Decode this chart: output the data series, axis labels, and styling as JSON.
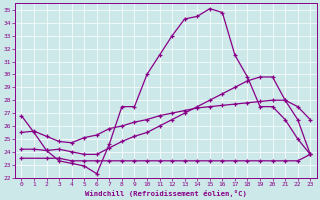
{
  "xlabel": "Windchill (Refroidissement éolien,°C)",
  "bg_color": "#cde8e8",
  "line_color": "#880088",
  "xlim": [
    -0.5,
    23.5
  ],
  "ylim": [
    22.0,
    35.5
  ],
  "yticks": [
    22,
    23,
    24,
    25,
    26,
    27,
    28,
    29,
    30,
    31,
    32,
    33,
    34,
    35
  ],
  "xticks": [
    0,
    1,
    2,
    3,
    4,
    5,
    6,
    7,
    8,
    9,
    10,
    11,
    12,
    13,
    14,
    15,
    16,
    17,
    18,
    19,
    20,
    21,
    22,
    23
  ],
  "s1_x": [
    0,
    1,
    2,
    3,
    4,
    5,
    6,
    7,
    8,
    9,
    10,
    11,
    12,
    13,
    14,
    15,
    16,
    17,
    18,
    19,
    20,
    21,
    22,
    23
  ],
  "s1_y": [
    26.8,
    25.5,
    24.1,
    23.3,
    23.1,
    22.9,
    22.3,
    24.6,
    27.5,
    27.5,
    30.0,
    31.5,
    33.0,
    34.3,
    34.5,
    35.1,
    34.8,
    31.5,
    29.8,
    27.5,
    27.5,
    26.5,
    25.0,
    23.8
  ],
  "s2_x": [
    0,
    2,
    3,
    4,
    5,
    6,
    7,
    8,
    9,
    10,
    11,
    12,
    13,
    14,
    15,
    16,
    17,
    18,
    19,
    20,
    21,
    22,
    23
  ],
  "s2_y": [
    23.5,
    23.5,
    23.5,
    23.3,
    23.3,
    23.3,
    23.3,
    23.3,
    23.3,
    23.3,
    23.3,
    23.3,
    23.3,
    23.3,
    23.3,
    23.3,
    23.3,
    23.3,
    23.3,
    23.3,
    23.3,
    23.3,
    23.8
  ],
  "s3_x": [
    0,
    1,
    2,
    3,
    4,
    5,
    6,
    7,
    8,
    9,
    10,
    11,
    12,
    13,
    14,
    15,
    16,
    17,
    18,
    19,
    20,
    21,
    22,
    23
  ],
  "s3_y": [
    25.5,
    25.6,
    25.2,
    24.8,
    24.7,
    25.1,
    25.3,
    25.8,
    26.0,
    26.3,
    26.5,
    26.8,
    27.0,
    27.2,
    27.4,
    27.5,
    27.6,
    27.7,
    27.8,
    27.9,
    28.0,
    28.0,
    27.5,
    26.5
  ],
  "s4_x": [
    0,
    1,
    2,
    3,
    4,
    5,
    6,
    7,
    8,
    9,
    10,
    11,
    12,
    13,
    14,
    15,
    16,
    17,
    18,
    19,
    20,
    21,
    22,
    23
  ],
  "s4_y": [
    24.2,
    24.2,
    24.1,
    24.2,
    24.0,
    23.8,
    23.8,
    24.3,
    24.8,
    25.2,
    25.5,
    26.0,
    26.5,
    27.0,
    27.5,
    28.0,
    28.5,
    29.0,
    29.5,
    29.8,
    29.8,
    28.0,
    26.5,
    23.8
  ]
}
